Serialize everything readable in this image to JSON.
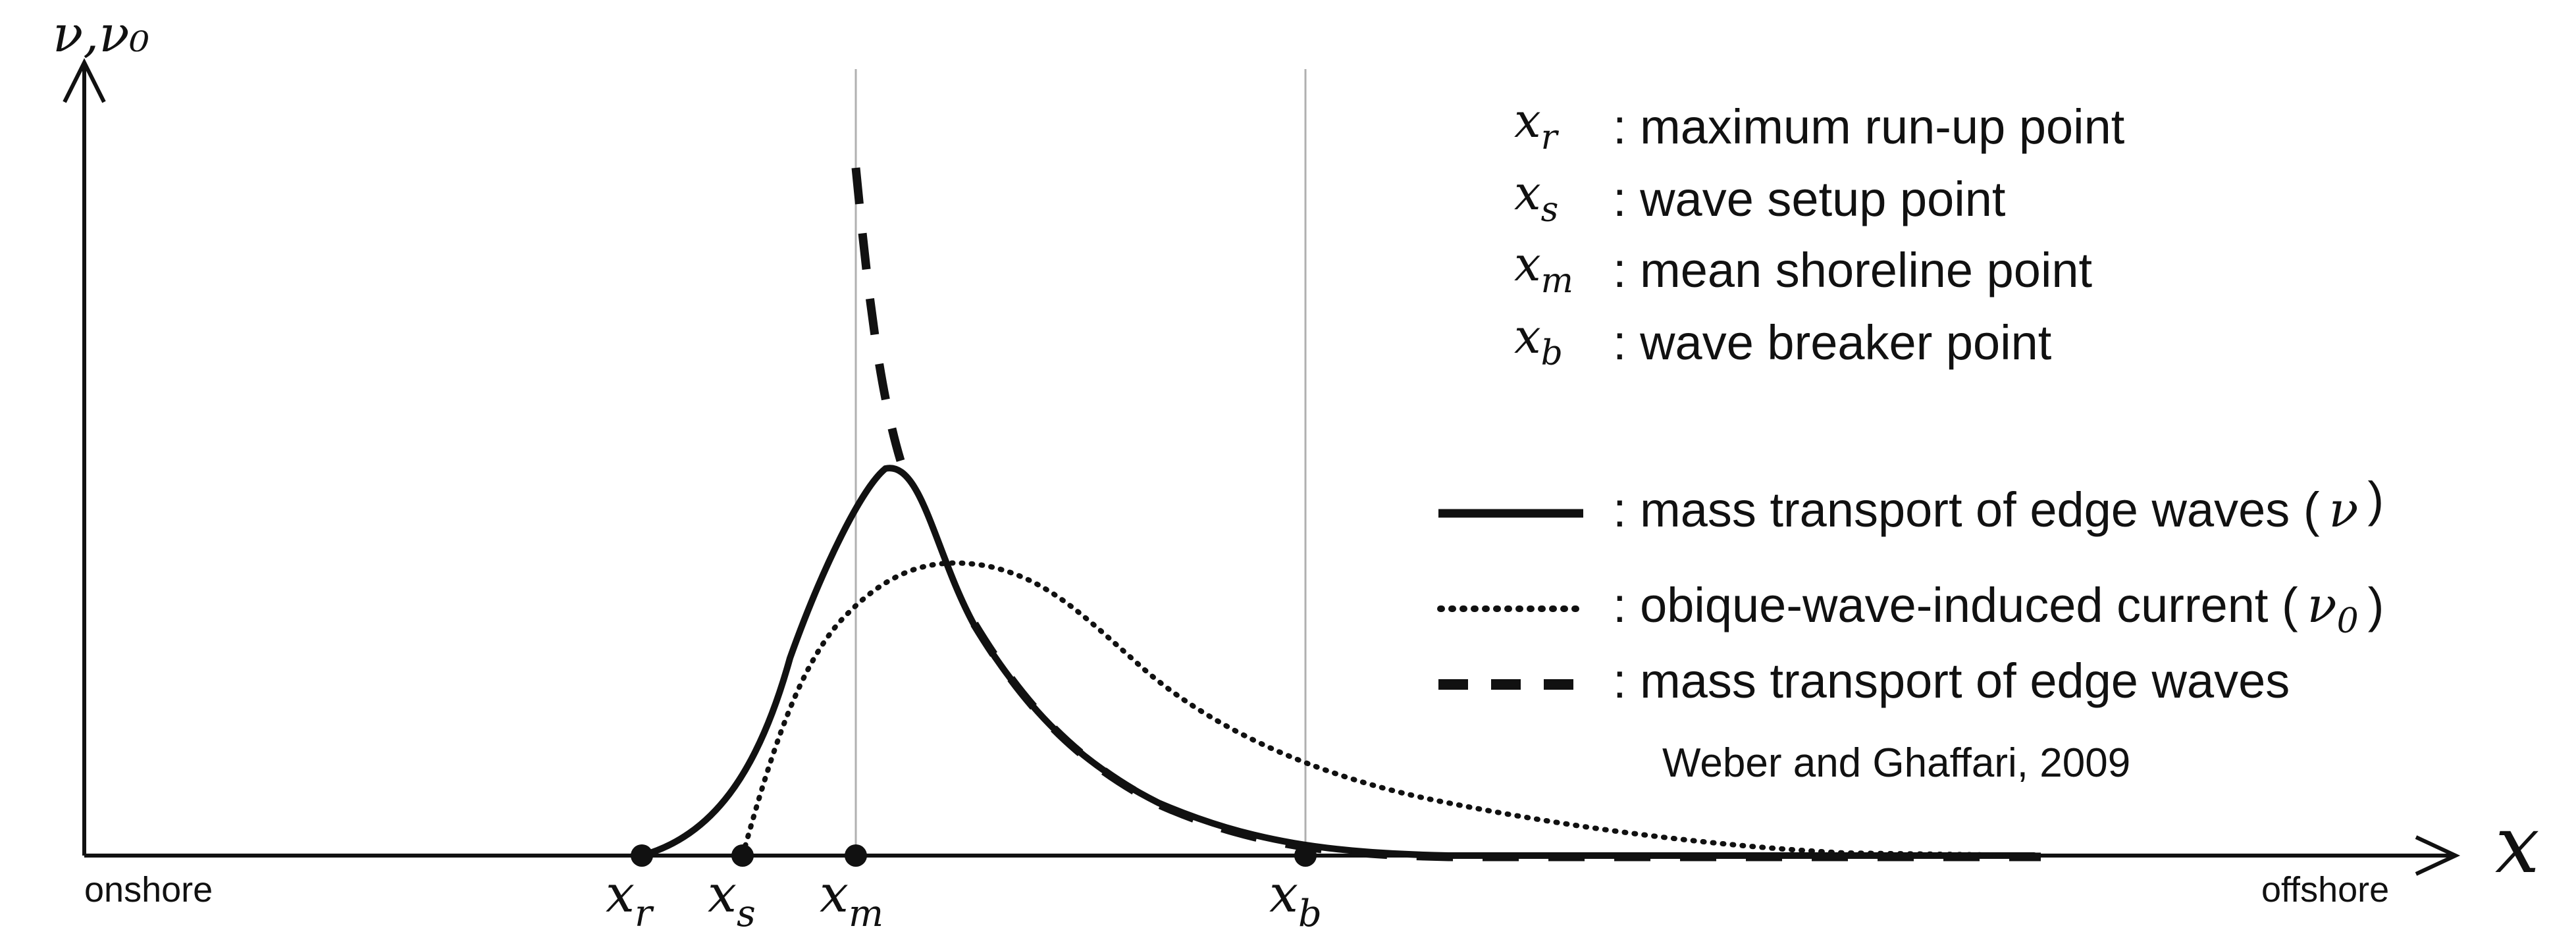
{
  "axes": {
    "y_label": "ν,ν₀",
    "x_label": "x",
    "onshore_label": "onshore",
    "offshore_label": "offshore"
  },
  "points": [
    {
      "symbol": "x",
      "sub": "r"
    },
    {
      "symbol": "x",
      "sub": "s"
    },
    {
      "symbol": "x",
      "sub": "m"
    },
    {
      "symbol": "x",
      "sub": "b"
    }
  ],
  "point_legend": [
    {
      "symbol": "x",
      "sub": "r",
      "desc": ": maximum run-up point"
    },
    {
      "symbol": "x",
      "sub": "s",
      "desc": ": wave setup point"
    },
    {
      "symbol": "x",
      "sub": "m",
      "desc": ": mean shoreline point"
    },
    {
      "symbol": "x",
      "sub": "b",
      "desc": ": wave breaker point"
    }
  ],
  "curve_legend": [
    {
      "style": "solid",
      "desc": ": mass transport of edge waves (",
      "sym": "ν",
      "sym_sub": "",
      "close": ")"
    },
    {
      "style": "dotted",
      "desc": ": obique-wave-induced current (",
      "sym": "ν",
      "sym_sub": "0",
      "close": ")"
    },
    {
      "style": "dashed",
      "desc": ": mass transport of edge waves",
      "sym": "",
      "sym_sub": "",
      "close": ""
    }
  ],
  "citation": "Weber and Ghaffari, 2009",
  "colors": {
    "ink": "#111111",
    "guide": "#b0b0b0"
  }
}
